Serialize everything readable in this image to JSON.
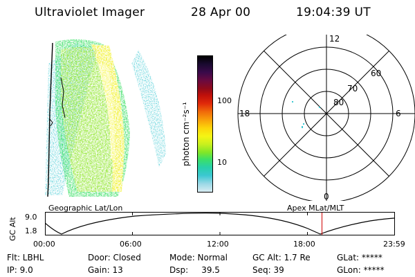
{
  "header": {
    "instrument": "Ultraviolet Imager",
    "date": "28 Apr 00",
    "time": "19:04:39 UT"
  },
  "colorbar": {
    "label": "photon cm⁻²s⁻¹",
    "ticks": [
      "100",
      "10"
    ],
    "colors": [
      "#000000",
      "#1a0a30",
      "#3a0a4a",
      "#6a0a40",
      "#900a1a",
      "#c0100a",
      "#e02a0a",
      "#f06a0a",
      "#f8a00a",
      "#fcd50a",
      "#f5f514",
      "#c8f01e",
      "#80e628",
      "#3ce066",
      "#28d0aa",
      "#3cc8d2",
      "#9ad8e6",
      "#d8ecf2"
    ]
  },
  "polar": {
    "lat_labels": [
      "80",
      "70",
      "60"
    ],
    "mlt_labels": {
      "top": "12",
      "left": "18",
      "right": "6",
      "bottom": "0"
    }
  },
  "panel_labels": {
    "left": "Geographic Lat/Lon",
    "right": "Apex MLat/MLT"
  },
  "altitude_plot": {
    "ylabel": "GC Alt",
    "yticks": [
      "9.0",
      "1.8"
    ],
    "xticks": [
      "00:00",
      "06:00",
      "12:00",
      "18:00",
      "23:59"
    ],
    "marker_time": "19:04:39",
    "marker_color": "#d00000"
  },
  "info": {
    "flt": "Flt: LBHL",
    "ip": "IP:  9.0",
    "door": "Door: Closed",
    "gain": "Gain: 13",
    "mode": "Mode: Normal",
    "dsp": "Dsp:     39.5",
    "gcalt": "GC Alt: 1.7 Re",
    "seq": "Seq: 39",
    "glat": "GLat: *****",
    "glon": "GLon: *****"
  }
}
